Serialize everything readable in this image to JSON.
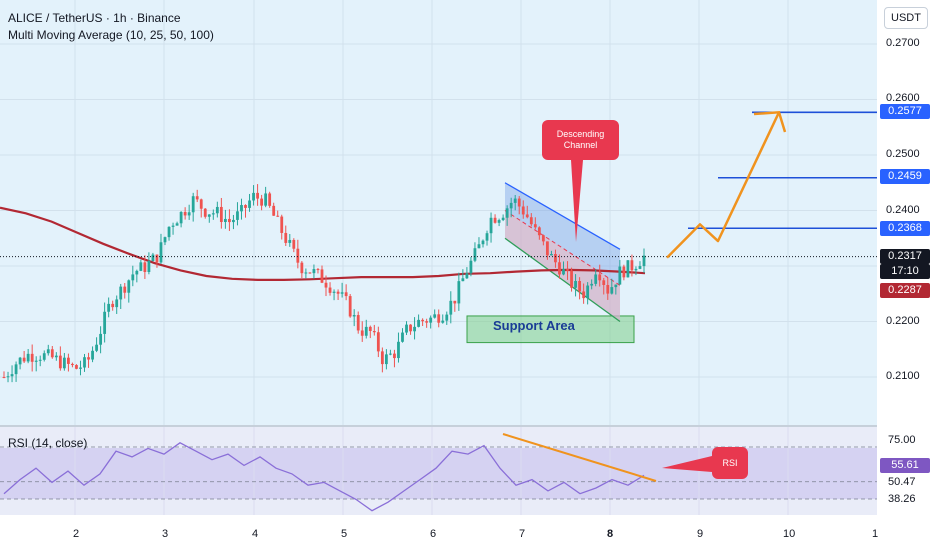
{
  "header": {
    "symbol_line": "ALICE / TetherUS · 1h · Binance",
    "indicator_line": "Multi Moving Average (10, 25, 50, 100)",
    "currency": "USDT"
  },
  "price_axis": {
    "ticks": [
      "0.2700",
      "0.2600",
      "0.2500",
      "0.2400",
      "0.2200",
      "0.2100"
    ]
  },
  "price_tags": {
    "target_3": "0.2577",
    "target_2": "0.2459",
    "target_1": "0.2368",
    "last_price": "0.2317",
    "countdown": "17:10",
    "ma_value": "0.2287"
  },
  "annotations": {
    "descending_channel": "Descending\nChannel",
    "support_area": "Support Area",
    "rsi_callout": "RSI"
  },
  "rsi": {
    "title": "RSI (14, close)",
    "ticks": [
      "75.00",
      "50.47",
      "38.26"
    ],
    "value": "55.61"
  },
  "time_axis": {
    "labels": [
      "2",
      "3",
      "4",
      "5",
      "6",
      "7",
      "8",
      "9",
      "10",
      "1"
    ]
  },
  "colors": {
    "up": "#26a69a",
    "down": "#ef5350",
    "ma": "#b22833",
    "target_line": "#1e50d8",
    "projection": "#f0931e",
    "callout": "#e8384f",
    "rsi_line": "#8a6fd8"
  },
  "chart_data": {
    "type": "candlestick",
    "title": "ALICE / TetherUS · 1h · Binance",
    "y_unit": "USDT",
    "ylim": [
      0.204,
      0.275
    ],
    "x_labels": [
      "2",
      "3",
      "4",
      "5",
      "6",
      "7",
      "8",
      "9",
      "10",
      "1"
    ],
    "close_path": [
      0.21,
      0.2125,
      0.214,
      0.214,
      0.2135,
      0.2125,
      0.2115,
      0.2125,
      0.2175,
      0.2235,
      0.226,
      0.229,
      0.23,
      0.232,
      0.2375,
      0.2395,
      0.242,
      0.24,
      0.2395,
      0.238,
      0.2395,
      0.2425,
      0.242,
      0.238,
      0.234,
      0.23,
      0.229,
      0.2275,
      0.2255,
      0.223,
      0.2185,
      0.218,
      0.213,
      0.2145,
      0.2185,
      0.22,
      0.2205,
      0.2215,
      0.224,
      0.229,
      0.233,
      0.2385,
      0.2395,
      0.242,
      0.2395,
      0.2355,
      0.232,
      0.2295,
      0.2265,
      0.225,
      0.23,
      0.2255,
      0.229,
      0.23,
      0.2317
    ],
    "moving_average_100": [
      0.2405,
      0.2395,
      0.238,
      0.236,
      0.234,
      0.2322,
      0.2305,
      0.2292,
      0.2282,
      0.2277,
      0.2275,
      0.2275,
      0.2276,
      0.2278,
      0.228,
      0.228,
      0.228,
      0.2282,
      0.2286,
      0.2287,
      0.229,
      0.2292,
      0.2293,
      0.2292,
      0.229,
      0.2287
    ],
    "levels": [
      {
        "label": "0.2577",
        "value": 0.2577
      },
      {
        "label": "0.2459",
        "value": 0.2459
      },
      {
        "label": "0.2368",
        "value": 0.2368
      }
    ],
    "descending_channel": {
      "upper": [
        0.245,
        0.233
      ],
      "lower": [
        0.235,
        0.22
      ]
    },
    "support_area": [
      0.218,
      0.221
    ],
    "projection": [
      0.2315,
      0.2375,
      0.2345,
      0.2577
    ],
    "rsi": {
      "title": "RSI (14, close)",
      "current": 55.61,
      "levels": [
        75.0,
        50.47,
        38.26
      ],
      "path": [
        42,
        52,
        60,
        50,
        58,
        48,
        56,
        72,
        68,
        74,
        70,
        78,
        72,
        66,
        70,
        62,
        68,
        60,
        56,
        48,
        50,
        44,
        38,
        30,
        36,
        44,
        52,
        60,
        72,
        70,
        76,
        60,
        48,
        52,
        44,
        50,
        42,
        46,
        52,
        48,
        55
      ]
    }
  }
}
